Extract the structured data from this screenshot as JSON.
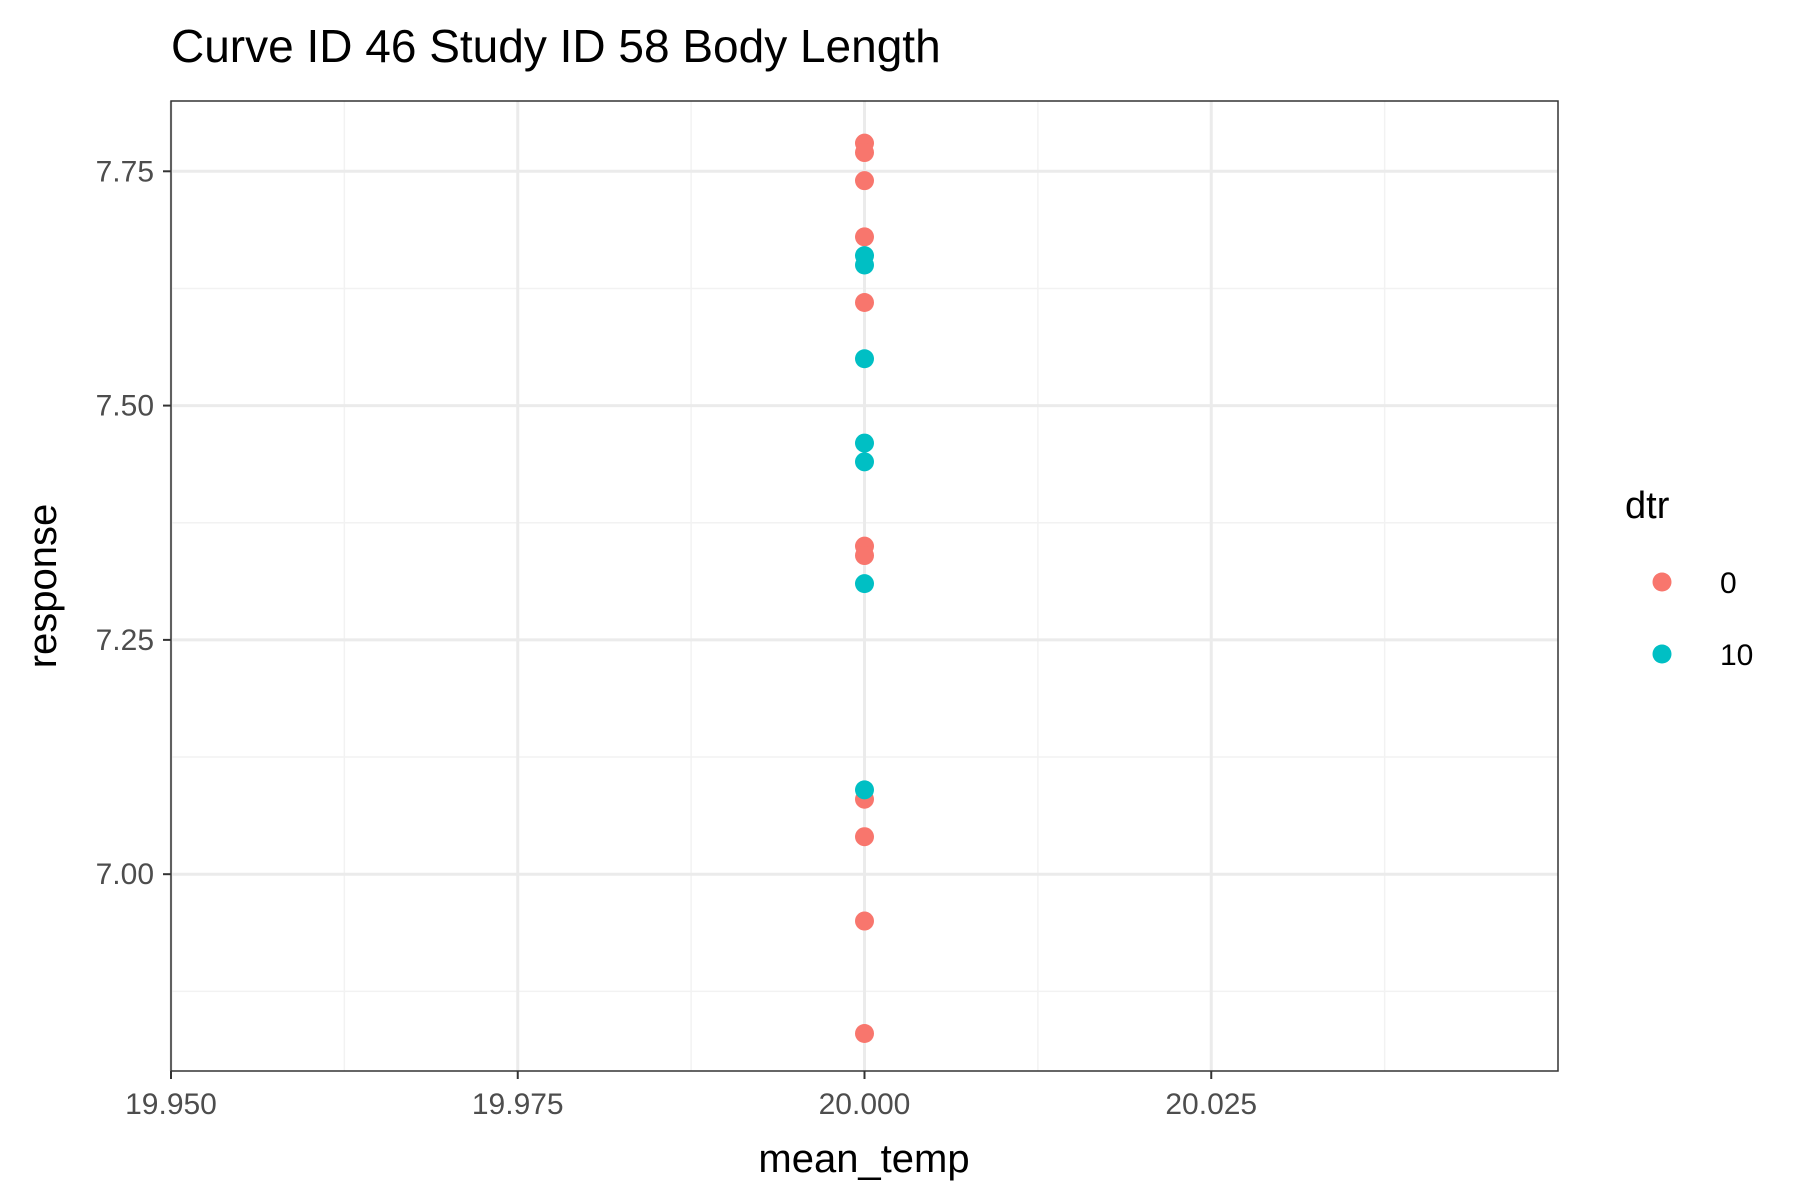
{
  "chart_data": {
    "type": "scatter",
    "title": "Curve ID 46 Study ID 58 Body Length",
    "xlabel": "mean_temp",
    "ylabel": "response",
    "xlim": [
      19.95,
      20.05
    ],
    "ylim": [
      6.79,
      7.825
    ],
    "x_ticks": [
      "19.950",
      "19.975",
      "20.000",
      "20.025"
    ],
    "x_tick_values": [
      19.95,
      19.975,
      20.0,
      20.025
    ],
    "y_ticks": [
      "7.00",
      "7.25",
      "7.50",
      "7.75"
    ],
    "y_tick_values": [
      7.0,
      7.25,
      7.5,
      7.75
    ],
    "grid": true,
    "legend": {
      "title": "dtr",
      "position": "right",
      "entries": [
        {
          "label": "0",
          "color": "#F8766D"
        },
        {
          "label": "10",
          "color": "#00BFC4"
        }
      ]
    },
    "series": [
      {
        "name": "0",
        "color": "#F8766D",
        "points": [
          {
            "x": 20.0,
            "y": 7.78
          },
          {
            "x": 20.0,
            "y": 7.77
          },
          {
            "x": 20.0,
            "y": 7.74
          },
          {
            "x": 20.0,
            "y": 7.68
          },
          {
            "x": 20.0,
            "y": 7.61
          },
          {
            "x": 20.0,
            "y": 7.35
          },
          {
            "x": 20.0,
            "y": 7.34
          },
          {
            "x": 20.0,
            "y": 7.08
          },
          {
            "x": 20.0,
            "y": 7.04
          },
          {
            "x": 20.0,
            "y": 6.95
          },
          {
            "x": 20.0,
            "y": 6.83
          }
        ]
      },
      {
        "name": "10",
        "color": "#00BFC4",
        "points": [
          {
            "x": 20.0,
            "y": 7.66
          },
          {
            "x": 20.0,
            "y": 7.65
          },
          {
            "x": 20.0,
            "y": 7.55
          },
          {
            "x": 20.0,
            "y": 7.46
          },
          {
            "x": 20.0,
            "y": 7.44
          },
          {
            "x": 20.0,
            "y": 7.31
          },
          {
            "x": 20.0,
            "y": 7.09
          }
        ]
      }
    ]
  }
}
